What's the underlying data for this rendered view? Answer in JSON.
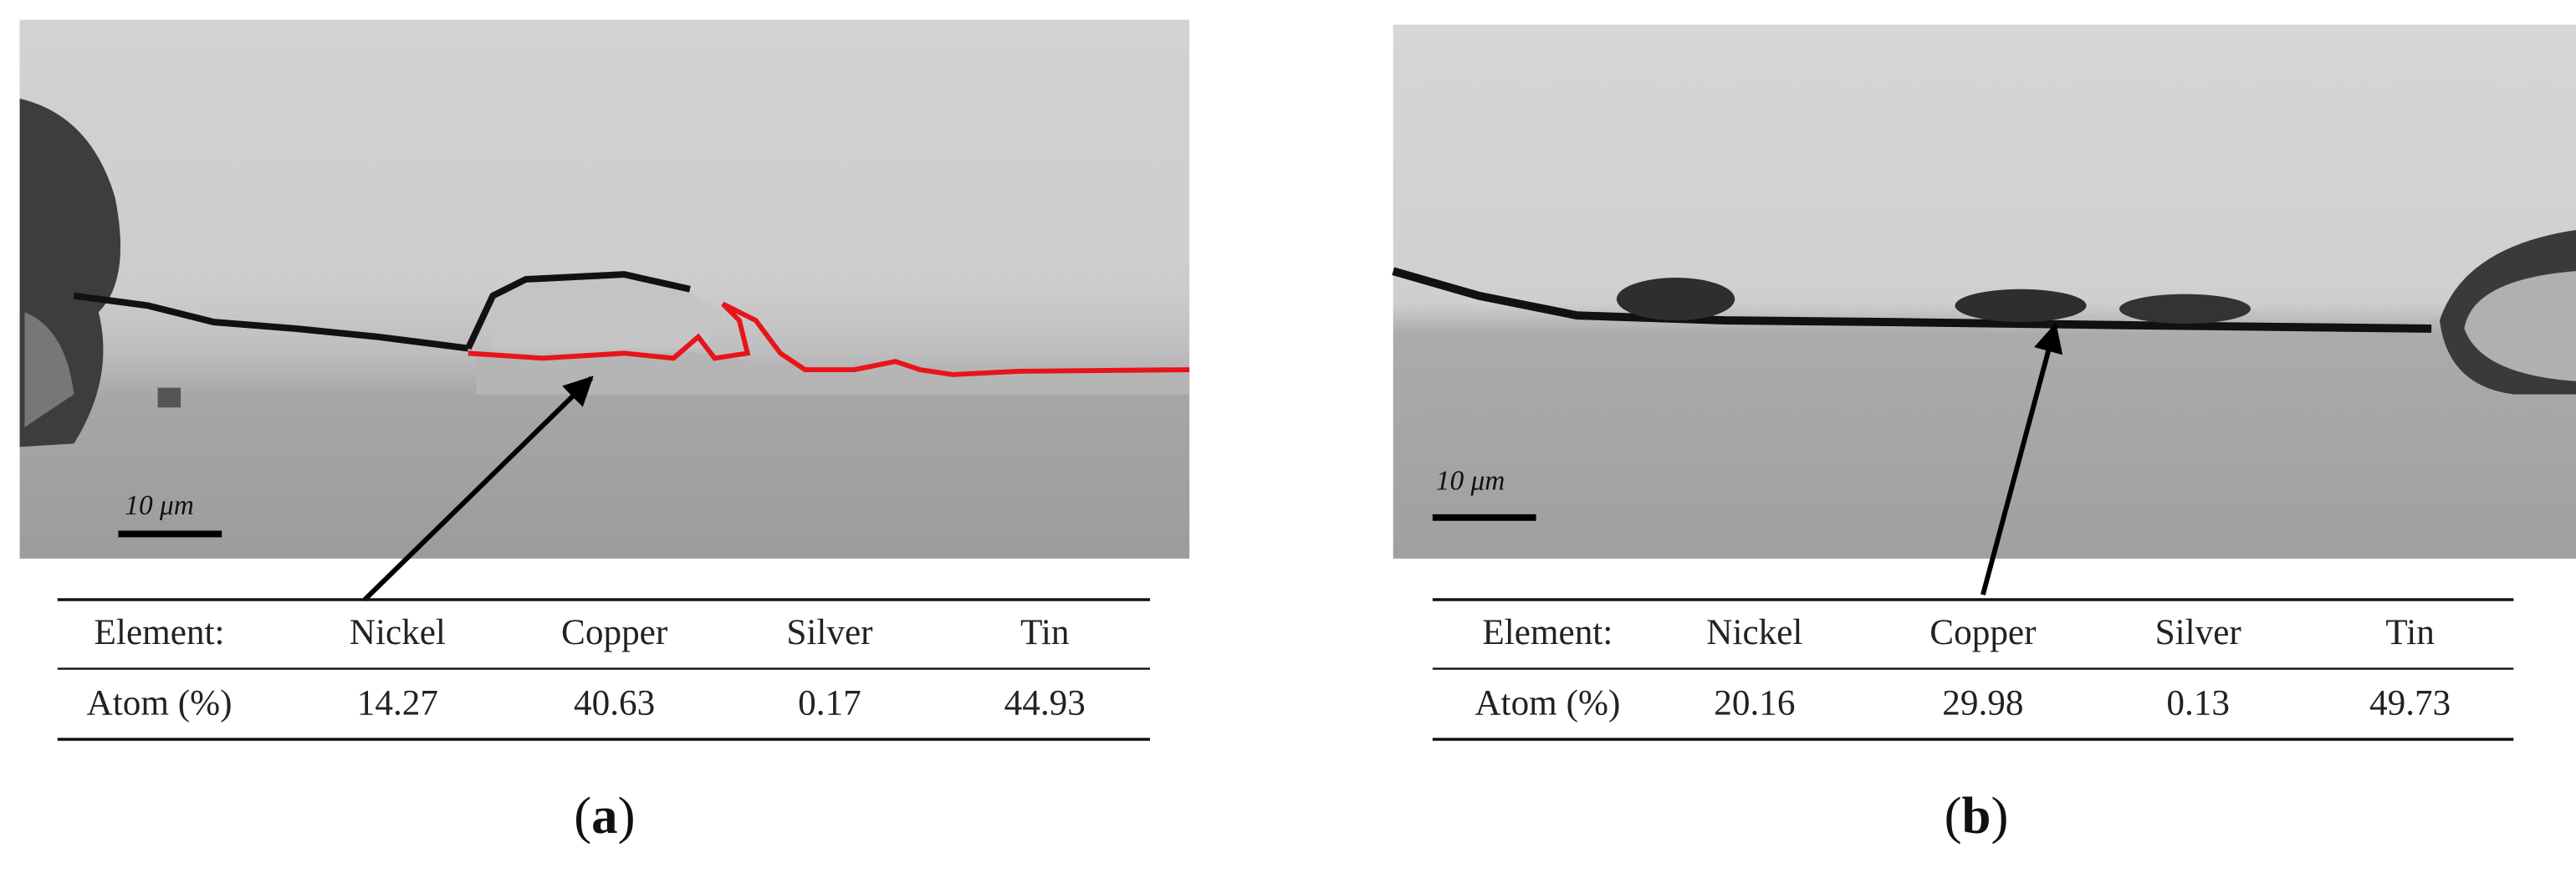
{
  "panels": [
    {
      "scale_bar": "10 μm",
      "table": {
        "header": [
          "Element:",
          "Nickel",
          "Copper",
          "Silver",
          "Tin"
        ],
        "rows": [
          [
            "Atom (%)",
            14.27,
            40.63,
            0.17,
            44.93
          ]
        ]
      },
      "caption": {
        "open": "(",
        "letter": "a",
        "close": ")"
      }
    },
    {
      "scale_bar": "10 μm",
      "table": {
        "header": [
          "Element:",
          "Nickel",
          "Copper",
          "Silver",
          "Tin"
        ],
        "rows": [
          [
            "Atom (%)",
            20.16,
            29.98,
            0.13,
            49.73
          ]
        ]
      },
      "caption": {
        "open": "(",
        "letter": "b",
        "close": ")"
      }
    }
  ]
}
